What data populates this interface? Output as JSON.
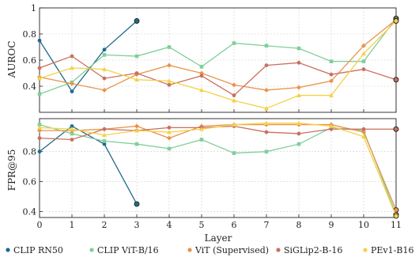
{
  "chart_data": [
    {
      "type": "line",
      "panel": "top",
      "ylabel": "AUROC",
      "x": [
        0,
        1,
        2,
        3,
        4,
        5,
        6,
        7,
        8,
        9,
        10,
        11
      ],
      "ylim": [
        0.2,
        1.0
      ],
      "yticks": [
        0.4,
        0.6,
        0.8,
        1
      ],
      "ytick_labels": [
        "0.4",
        "0.6",
        "0.8",
        "1"
      ],
      "grid": true,
      "series": [
        {
          "name": "CLIP RN50",
          "color": "#1f6a8e",
          "marker": "circle",
          "x": [
            0,
            1,
            2,
            3
          ],
          "values": [
            0.75,
            0.36,
            0.68,
            0.9
          ]
        },
        {
          "name": "CLIP ViT-B/16",
          "color": "#7fcf98",
          "marker": "square",
          "x": [
            0,
            1,
            2,
            3,
            4,
            5,
            6,
            7,
            8,
            9,
            10,
            11
          ],
          "values": [
            0.34,
            0.43,
            0.64,
            0.63,
            0.7,
            0.55,
            0.73,
            0.71,
            0.69,
            0.59,
            0.59,
            0.92
          ]
        },
        {
          "name": "ViT (Supervised)",
          "color": "#e8944a",
          "marker": "diamond",
          "x": [
            0,
            1,
            2,
            3,
            4,
            5,
            6,
            7,
            8,
            9,
            10,
            11
          ],
          "values": [
            0.47,
            0.42,
            0.37,
            0.49,
            0.56,
            0.5,
            0.41,
            0.37,
            0.39,
            0.44,
            0.71,
            0.91
          ]
        },
        {
          "name": "SiGLip2-B-16",
          "color": "#c8705f",
          "marker": "circle",
          "x": [
            0,
            1,
            2,
            3,
            4,
            5,
            6,
            7,
            8,
            9,
            10,
            11
          ],
          "values": [
            0.54,
            0.63,
            0.46,
            0.5,
            0.41,
            0.48,
            0.33,
            0.56,
            0.58,
            0.49,
            0.53,
            0.45
          ]
        },
        {
          "name": "PEv1-B16",
          "color": "#f4d148",
          "marker": "triangle",
          "x": [
            0,
            1,
            2,
            3,
            4,
            5,
            6,
            7,
            8,
            9,
            10,
            11
          ],
          "values": [
            0.46,
            0.54,
            0.53,
            0.45,
            0.44,
            0.37,
            0.29,
            0.23,
            0.33,
            0.33,
            0.65,
            0.9
          ]
        }
      ]
    },
    {
      "type": "line",
      "panel": "bottom",
      "ylabel": "FPR@95",
      "xlabel": "Layer",
      "x": [
        0,
        1,
        2,
        3,
        4,
        5,
        6,
        7,
        8,
        9,
        10,
        11
      ],
      "ylim": [
        0.36,
        1.02
      ],
      "yticks": [
        0.4,
        0.6,
        0.8
      ],
      "ytick_labels": [
        "0.4",
        "0.6",
        "0.8"
      ],
      "xticks": [
        0,
        1,
        2,
        3,
        4,
        5,
        6,
        7,
        8,
        9,
        10,
        11
      ],
      "grid": true,
      "series": [
        {
          "name": "CLIP RN50",
          "color": "#1f6a8e",
          "marker": "circle",
          "x": [
            0,
            1,
            2,
            3
          ],
          "values": [
            0.8,
            0.97,
            0.85,
            0.45
          ]
        },
        {
          "name": "CLIP ViT-B/16",
          "color": "#7fcf98",
          "marker": "square",
          "x": [
            0,
            1,
            2,
            3,
            4,
            5,
            6,
            7,
            8,
            9,
            10,
            11
          ],
          "values": [
            0.98,
            0.92,
            0.87,
            0.85,
            0.82,
            0.88,
            0.79,
            0.8,
            0.85,
            0.96,
            0.94,
            0.38
          ]
        },
        {
          "name": "ViT (Supervised)",
          "color": "#e8944a",
          "marker": "diamond",
          "x": [
            0,
            1,
            2,
            3,
            4,
            5,
            6,
            7,
            8,
            9,
            10,
            11
          ],
          "values": [
            0.94,
            0.94,
            0.95,
            0.97,
            0.89,
            0.97,
            0.98,
            0.98,
            0.98,
            0.98,
            0.93,
            0.41
          ]
        },
        {
          "name": "SiGLip2-B-16",
          "color": "#c8705f",
          "marker": "circle",
          "x": [
            0,
            1,
            2,
            3,
            4,
            5,
            6,
            7,
            8,
            9,
            10,
            11
          ],
          "values": [
            0.89,
            0.88,
            0.95,
            0.94,
            0.96,
            0.96,
            0.97,
            0.93,
            0.92,
            0.95,
            0.95,
            0.95
          ]
        },
        {
          "name": "PEv1-B16",
          "color": "#f4d148",
          "marker": "triangle",
          "x": [
            0,
            1,
            2,
            3,
            4,
            5,
            6,
            7,
            8,
            9,
            10,
            11
          ],
          "values": [
            0.96,
            0.95,
            0.91,
            0.94,
            0.93,
            0.95,
            0.98,
            0.99,
            0.99,
            0.97,
            0.9,
            0.37
          ]
        }
      ]
    }
  ],
  "legend": {
    "placement": "bottom",
    "entries": [
      "CLIP RN50",
      "CLIP ViT-B/16",
      "ViT (Supervised)",
      "SiGLip2-B-16",
      "PEv1-B16"
    ]
  }
}
